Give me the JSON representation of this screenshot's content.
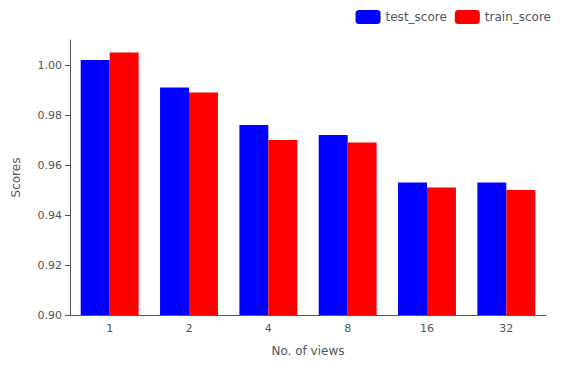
{
  "chart_data": {
    "type": "bar",
    "categories": [
      "1",
      "2",
      "4",
      "8",
      "16",
      "32"
    ],
    "series": [
      {
        "name": "test_score",
        "color": "#0000ff",
        "values": [
          1.002,
          0.991,
          0.976,
          0.972,
          0.953,
          0.953
        ]
      },
      {
        "name": "train_score",
        "color": "#ff0000",
        "values": [
          1.005,
          0.989,
          0.97,
          0.969,
          0.951,
          0.95
        ]
      }
    ],
    "xlabel": "No. of views",
    "ylabel": "Scores",
    "ylim": [
      0.9,
      1.01
    ],
    "yticks": [
      {
        "value": 0.9,
        "label": "0.90"
      },
      {
        "value": 0.92,
        "label": "0.92"
      },
      {
        "value": 0.94,
        "label": "0.94"
      },
      {
        "value": 0.96,
        "label": "0.96"
      },
      {
        "value": 0.98,
        "label": "0.98"
      },
      {
        "value": 1.0,
        "label": "1.00"
      }
    ],
    "legend": "upper right",
    "grid": false
  }
}
